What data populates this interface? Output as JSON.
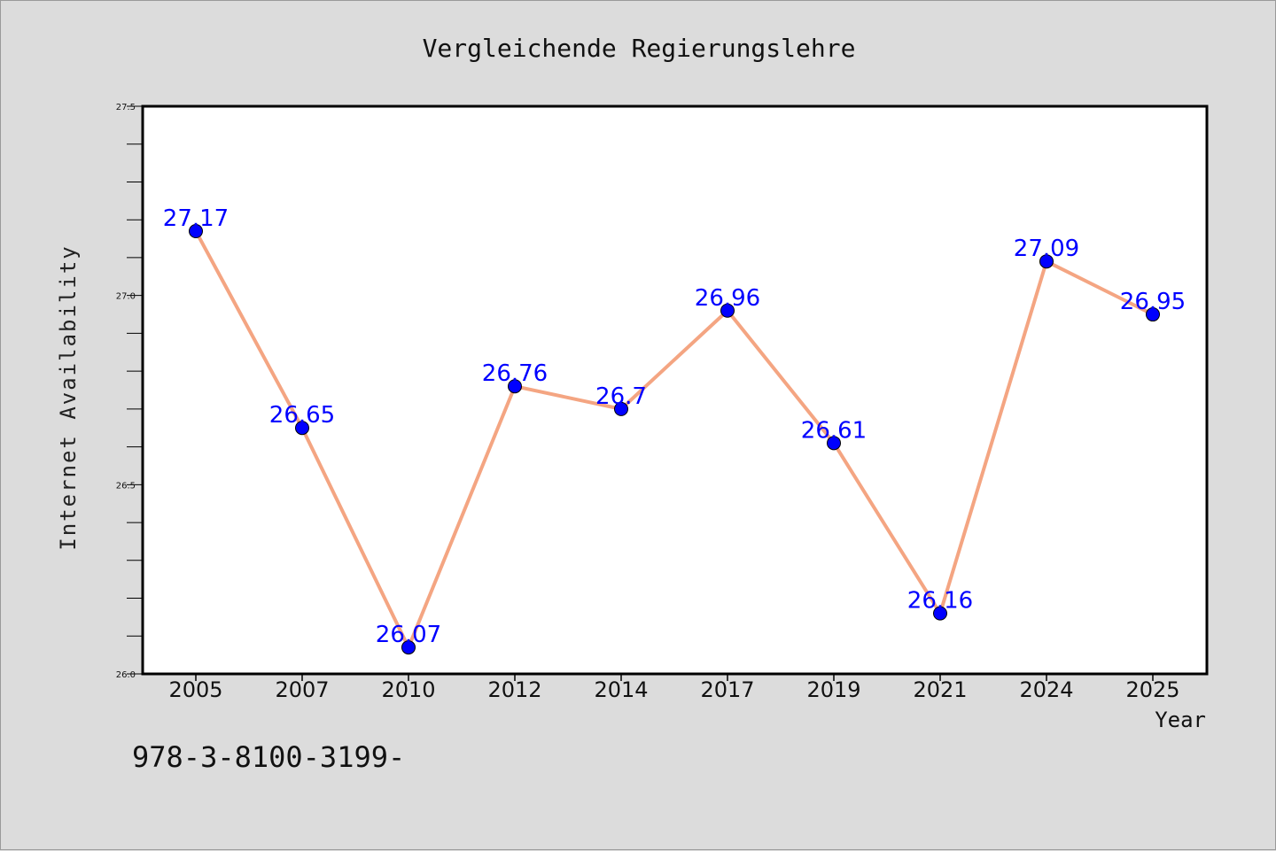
{
  "footer_text": "978-3-8100-3199-",
  "chart_data": {
    "type": "line",
    "title": "Vergleichende Regierungslehre",
    "xlabel": "Year",
    "ylabel": "Internet Availability",
    "categories": [
      "2005",
      "2007",
      "2010",
      "2012",
      "2014",
      "2017",
      "2019",
      "2021",
      "2024",
      "2025"
    ],
    "series": [
      {
        "values": [
          27.17,
          26.65,
          26.07,
          26.76,
          26.7,
          26.96,
          26.61,
          26.16,
          27.09,
          26.95
        ],
        "labels": [
          "27.17",
          "26.65",
          "26.07",
          "26.76",
          "26.7",
          "26.96",
          "26.61",
          "26.16",
          "27.09",
          "26.95"
        ],
        "line_color": "#f4a582",
        "marker_color": "#0000ff"
      }
    ],
    "ylim": [
      26.0,
      27.5
    ],
    "yticks": [
      26.0,
      26.5,
      27.0,
      27.5
    ],
    "ytick_labels": [
      "26.0",
      "26.5",
      "27.0",
      "27.5"
    ],
    "yminor_step": 0.1,
    "grid": false,
    "legend": "none",
    "background": "#dcdcdc",
    "plot_background": "#ffffff"
  }
}
